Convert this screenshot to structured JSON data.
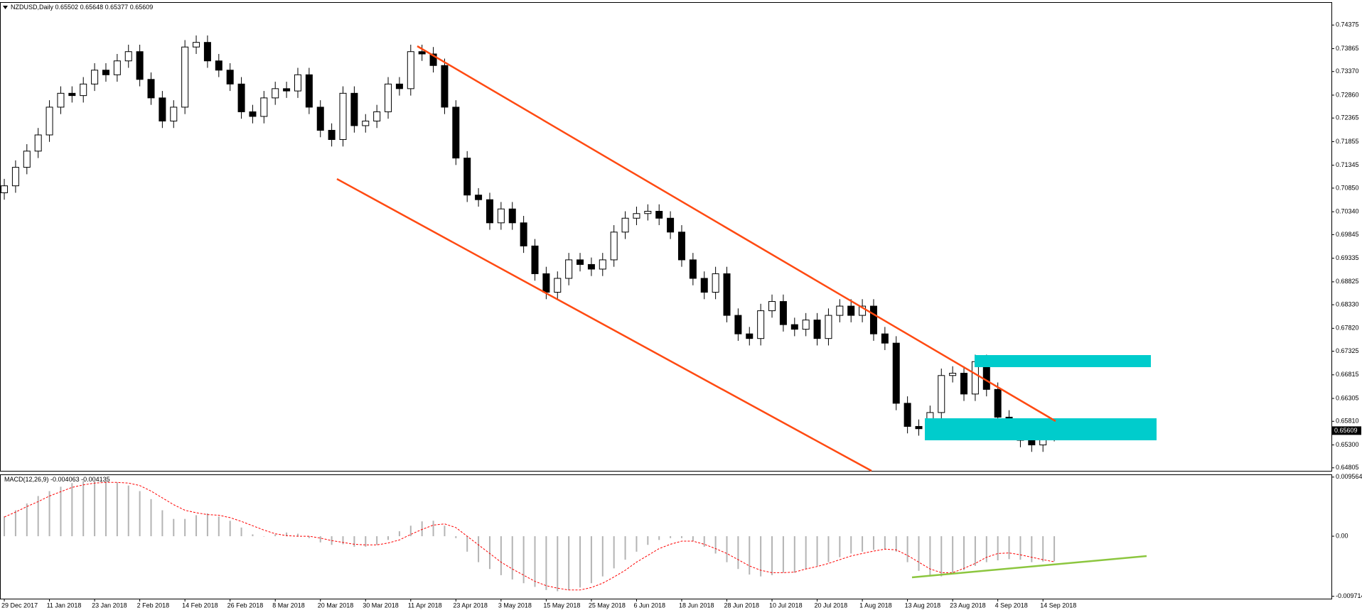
{
  "chart_data": {
    "type": "candlestick",
    "title": "NZDUSD,Daily",
    "up_color": "#ffffff",
    "down_color": "#000000",
    "x": [
      0,
      2,
      4,
      6,
      8,
      10,
      12,
      14,
      16,
      18,
      20,
      22,
      24,
      26,
      28,
      30,
      32,
      34,
      36,
      38,
      40,
      42,
      44,
      46,
      48,
      50,
      52,
      54,
      56,
      58,
      60,
      62,
      64,
      66,
      68,
      70,
      72,
      74,
      76,
      78,
      80,
      82,
      84,
      86,
      88,
      90,
      92,
      94,
      96,
      98,
      100,
      102,
      104,
      106,
      108,
      110,
      112,
      114,
      116,
      118,
      120,
      122,
      124,
      126,
      128,
      130,
      132,
      134,
      136,
      138,
      140,
      142,
      144,
      146,
      148,
      150,
      152,
      154,
      156,
      158,
      160,
      162,
      164,
      166,
      168,
      170,
      172,
      174,
      176,
      178,
      180,
      182,
      184,
      186
    ],
    "open": [
      0.7075,
      0.709,
      0.713,
      0.7165,
      0.72,
      0.726,
      0.729,
      0.7285,
      0.731,
      0.734,
      0.733,
      0.736,
      0.738,
      0.732,
      0.728,
      0.723,
      0.726,
      0.739,
      0.74,
      0.736,
      0.734,
      0.731,
      0.725,
      0.724,
      0.728,
      0.73,
      0.7295,
      0.733,
      0.726,
      0.721,
      0.719,
      0.729,
      0.722,
      0.723,
      0.725,
      0.731,
      0.73,
      0.738,
      0.7375,
      0.735,
      0.726,
      0.715,
      0.707,
      0.706,
      0.701,
      0.704,
      0.701,
      0.696,
      0.69,
      0.686,
      0.689,
      0.693,
      0.692,
      0.691,
      0.693,
      0.699,
      0.702,
      0.703,
      0.7035,
      0.702,
      0.699,
      0.693,
      0.689,
      0.686,
      0.69,
      0.681,
      0.677,
      0.676,
      0.682,
      0.684,
      0.679,
      0.678,
      0.68,
      0.676,
      0.681,
      0.683,
      0.681,
      0.683,
      0.677,
      0.675,
      0.662,
      0.657,
      0.6565,
      0.66,
      0.668,
      0.6685,
      0.664,
      0.671,
      0.665,
      0.659,
      0.656,
      0.654,
      0.653,
      0.65502
    ],
    "high": [
      0.7105,
      0.7145,
      0.718,
      0.7215,
      0.7275,
      0.7305,
      0.7305,
      0.7325,
      0.7355,
      0.7355,
      0.7375,
      0.7395,
      0.7395,
      0.7335,
      0.7295,
      0.7275,
      0.7405,
      0.7415,
      0.7415,
      0.7375,
      0.7355,
      0.7325,
      0.7265,
      0.7295,
      0.7315,
      0.7315,
      0.7345,
      0.7345,
      0.7275,
      0.7225,
      0.7305,
      0.7305,
      0.7245,
      0.7265,
      0.7325,
      0.7325,
      0.7395,
      0.7395,
      0.739,
      0.7365,
      0.7275,
      0.7165,
      0.7085,
      0.7075,
      0.7055,
      0.7055,
      0.7025,
      0.6975,
      0.6915,
      0.6905,
      0.6945,
      0.6945,
      0.6935,
      0.6945,
      0.7005,
      0.7035,
      0.7045,
      0.705,
      0.705,
      0.7035,
      0.7005,
      0.6945,
      0.6905,
      0.6915,
      0.6915,
      0.6825,
      0.6785,
      0.6835,
      0.6855,
      0.6855,
      0.6805,
      0.6815,
      0.6815,
      0.6825,
      0.6845,
      0.6845,
      0.6845,
      0.6845,
      0.6785,
      0.6765,
      0.6635,
      0.6585,
      0.6615,
      0.6695,
      0.67,
      0.67,
      0.6725,
      0.6725,
      0.6665,
      0.6605,
      0.6575,
      0.6555,
      0.6575,
      0.65648
    ],
    "low": [
      0.706,
      0.7075,
      0.7115,
      0.715,
      0.7185,
      0.7245,
      0.727,
      0.727,
      0.7295,
      0.7315,
      0.7315,
      0.7345,
      0.7305,
      0.7265,
      0.7215,
      0.7215,
      0.7245,
      0.7375,
      0.7345,
      0.7325,
      0.7295,
      0.7235,
      0.7225,
      0.7225,
      0.7265,
      0.728,
      0.728,
      0.7245,
      0.7195,
      0.7175,
      0.7175,
      0.7205,
      0.7205,
      0.7215,
      0.7235,
      0.7285,
      0.7285,
      0.736,
      0.7335,
      0.7245,
      0.7135,
      0.7055,
      0.7045,
      0.6995,
      0.6995,
      0.6995,
      0.6945,
      0.6885,
      0.6845,
      0.6845,
      0.6875,
      0.6905,
      0.6895,
      0.6895,
      0.6915,
      0.6975,
      0.7005,
      0.7015,
      0.7005,
      0.6975,
      0.6915,
      0.6875,
      0.6845,
      0.6845,
      0.6795,
      0.6755,
      0.6745,
      0.6745,
      0.6805,
      0.6775,
      0.6765,
      0.6765,
      0.6745,
      0.6745,
      0.6795,
      0.6795,
      0.6795,
      0.6755,
      0.6735,
      0.6605,
      0.6555,
      0.655,
      0.655,
      0.6585,
      0.6665,
      0.6625,
      0.6625,
      0.6635,
      0.6575,
      0.6545,
      0.6525,
      0.6515,
      0.6515,
      0.65377
    ],
    "close": [
      0.709,
      0.713,
      0.7165,
      0.72,
      0.726,
      0.729,
      0.7285,
      0.731,
      0.734,
      0.733,
      0.736,
      0.738,
      0.732,
      0.728,
      0.723,
      0.726,
      0.739,
      0.74,
      0.736,
      0.734,
      0.731,
      0.725,
      0.724,
      0.728,
      0.73,
      0.7295,
      0.733,
      0.726,
      0.721,
      0.719,
      0.729,
      0.722,
      0.723,
      0.725,
      0.731,
      0.73,
      0.738,
      0.7375,
      0.735,
      0.726,
      0.715,
      0.707,
      0.706,
      0.701,
      0.704,
      0.701,
      0.696,
      0.69,
      0.686,
      0.689,
      0.693,
      0.692,
      0.691,
      0.693,
      0.699,
      0.702,
      0.703,
      0.7035,
      0.702,
      0.699,
      0.693,
      0.689,
      0.686,
      0.69,
      0.681,
      0.677,
      0.676,
      0.682,
      0.684,
      0.679,
      0.678,
      0.68,
      0.676,
      0.681,
      0.683,
      0.681,
      0.683,
      0.677,
      0.675,
      0.662,
      0.657,
      0.6565,
      0.66,
      0.668,
      0.6685,
      0.664,
      0.671,
      0.665,
      0.659,
      0.656,
      0.654,
      0.653,
      0.656,
      0.65609
    ],
    "xlim": [
      -0.76,
      235.1
    ],
    "ylim": [
      0.6474,
      0.7487
    ],
    "yticks": [
      0.74375,
      0.73865,
      {
        "value": 0.7337,
        "label": "0.73370"
      },
      {
        "value": 0.7286,
        "label": "0.72860"
      },
      0.72365,
      0.71855,
      0.71345,
      {
        "value": 0.7085,
        "label": "0.70850"
      },
      {
        "value": 0.7034,
        "label": "0.70340"
      },
      0.69845,
      0.69335,
      0.68825,
      {
        "value": 0.6833,
        "label": "0.68330"
      },
      {
        "value": 0.6782,
        "label": "0.67820"
      },
      0.67325,
      0.66815,
      0.66305,
      {
        "value": 0.6581,
        "label": "0.65810"
      },
      {
        "value": 0.653,
        "label": "0.65300"
      },
      0.64805
    ],
    "xticks": [
      {
        "value": 0,
        "label": "29 Dec 2017"
      },
      {
        "value": 8,
        "label": "11 Jan 2018"
      },
      {
        "value": 16,
        "label": "23 Jan 2018"
      },
      {
        "value": 24,
        "label": "2 Feb 2018"
      },
      {
        "value": 32,
        "label": "14 Feb 2018"
      },
      {
        "value": 40,
        "label": "26 Feb 2018"
      },
      {
        "value": 48,
        "label": "8 Mar 2018"
      },
      {
        "value": 56,
        "label": "20 Mar 2018"
      },
      {
        "value": 64,
        "label": "30 Mar 2018"
      },
      {
        "value": 72,
        "label": "11 Apr 2018"
      },
      {
        "value": 80,
        "label": "23 Apr 2018"
      },
      {
        "value": 88,
        "label": "3 May 2018"
      },
      {
        "value": 96,
        "label": "15 May 2018"
      },
      {
        "value": 104,
        "label": "25 May 2018"
      },
      {
        "value": 112,
        "label": "6 Jun 2018"
      },
      {
        "value": 120,
        "label": "18 Jun 2018"
      },
      {
        "value": 128,
        "label": "28 Jun 2018"
      },
      {
        "value": 136,
        "label": "10 Jul 2018"
      },
      {
        "value": 144,
        "label": "20 Jul 2018"
      },
      {
        "value": 152,
        "label": "1 Aug 2018"
      },
      {
        "value": 160,
        "label": "13 Aug 2018"
      },
      {
        "value": 168,
        "label": "23 Aug 2018"
      },
      {
        "value": 176,
        "label": "4 Sep 2018"
      },
      {
        "value": 184,
        "label": "14 Sep 2018"
      }
    ],
    "indicator": {
      "type": "macd",
      "name": "MACD(12,26,9)",
      "histogram": {
        "color": "#b4b4b4",
        "values": [
          0.0032,
          0.0042,
          0.0053,
          0.0065,
          0.0073,
          0.008,
          0.0086,
          0.0089,
          0.009,
          0.009,
          0.0087,
          0.0082,
          0.0073,
          0.006,
          0.0042,
          0.0028,
          0.0028,
          0.0034,
          0.0037,
          0.0032,
          0.0025,
          0.0014,
          0.0003,
          0.0,
          0.0003,
          0.0006,
          0.0004,
          -0.0003,
          -0.001,
          -0.0014,
          -0.0013,
          -0.0017,
          -0.0017,
          -0.0014,
          -0.0006,
          0.0008,
          0.0017,
          0.0024,
          0.0025,
          0.0017,
          -0.0003,
          -0.0025,
          -0.0042,
          -0.0053,
          -0.0063,
          -0.007,
          -0.0076,
          -0.0082,
          -0.0087,
          -0.0089,
          -0.0087,
          -0.0083,
          -0.0076,
          -0.0065,
          -0.0052,
          -0.0038,
          -0.0025,
          -0.0014,
          -0.0006,
          -0.0003,
          -0.0003,
          -0.0008,
          -0.0017,
          -0.0028,
          -0.0042,
          -0.0053,
          -0.0062,
          -0.0065,
          -0.0063,
          -0.0059,
          -0.0059,
          -0.0053,
          -0.0048,
          -0.0042,
          -0.0034,
          -0.0028,
          -0.0025,
          -0.0022,
          -0.0021,
          -0.0025,
          -0.0042,
          -0.0056,
          -0.0065,
          -0.0065,
          -0.0059,
          -0.0055,
          -0.0048,
          -0.0042,
          -0.0039,
          -0.0037,
          -0.0038,
          -0.0042,
          -0.0041,
          -0.004063
        ]
      },
      "signal": {
        "color": "#ff0000",
        "values": [
          0.0031,
          0.0039,
          0.0048,
          0.0056,
          0.0065,
          0.0072,
          0.0079,
          0.0083,
          0.0086,
          0.0087,
          0.0087,
          0.0086,
          0.0082,
          0.0073,
          0.0062,
          0.0051,
          0.0042,
          0.0038,
          0.0035,
          0.0034,
          0.003,
          0.0024,
          0.0017,
          0.001,
          0.0004,
          0.0001,
          0.0,
          0.0,
          -0.0003,
          -0.0007,
          -0.001,
          -0.0013,
          -0.0014,
          -0.0014,
          -0.0011,
          -0.0006,
          0.0003,
          0.0011,
          0.0018,
          0.002,
          0.0014,
          0.0,
          -0.0014,
          -0.0028,
          -0.0042,
          -0.0053,
          -0.0063,
          -0.0073,
          -0.008,
          -0.0084,
          -0.0087,
          -0.0087,
          -0.0083,
          -0.0076,
          -0.0066,
          -0.0055,
          -0.0042,
          -0.0031,
          -0.002,
          -0.0013,
          -0.0008,
          -0.0008,
          -0.0013,
          -0.002,
          -0.0028,
          -0.0038,
          -0.0048,
          -0.0055,
          -0.0059,
          -0.0059,
          -0.0058,
          -0.0053,
          -0.0049,
          -0.0044,
          -0.0038,
          -0.0032,
          -0.0028,
          -0.0024,
          -0.0021,
          -0.0022,
          -0.0031,
          -0.0042,
          -0.0053,
          -0.0059,
          -0.0059,
          -0.0052,
          -0.0044,
          -0.0034,
          -0.0028,
          -0.0027,
          -0.003,
          -0.0034,
          -0.0038,
          -0.004135
        ]
      },
      "ylim": [
        -0.0101,
        0.01
      ],
      "yticks": [
        0.009564,
        {
          "value": 0,
          "label": "0.00"
        },
        -0.009714
      ]
    }
  }
}
